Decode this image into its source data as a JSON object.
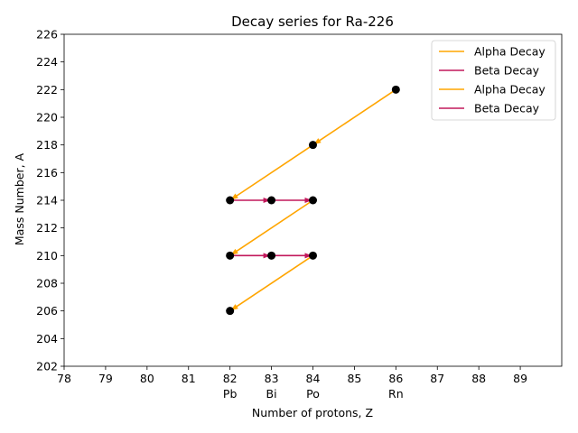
{
  "chart_data": {
    "type": "scatter",
    "title": "Decay series for Ra-226",
    "xlabel": "Number of protons, Z",
    "ylabel": "Mass Number, A",
    "xlim": [
      78,
      90
    ],
    "ylim": [
      202,
      226
    ],
    "x_ticks": [
      78,
      79,
      80,
      81,
      82,
      83,
      84,
      85,
      86,
      87,
      88,
      89
    ],
    "y_ticks": [
      202,
      204,
      206,
      208,
      210,
      212,
      214,
      216,
      218,
      220,
      222,
      224,
      226
    ],
    "element_labels": [
      {
        "z": 82,
        "symbol": "Pb"
      },
      {
        "z": 83,
        "symbol": "Bi"
      },
      {
        "z": 84,
        "symbol": "Po"
      },
      {
        "z": 86,
        "symbol": "Rn"
      }
    ],
    "grid": false,
    "legend_position": "top-right",
    "colors": {
      "alpha": "#FFA500",
      "beta": "#C2185B",
      "point": "#000000"
    },
    "points": [
      {
        "z": 86,
        "a": 222
      },
      {
        "z": 84,
        "a": 218
      },
      {
        "z": 82,
        "a": 214
      },
      {
        "z": 83,
        "a": 214
      },
      {
        "z": 84,
        "a": 214
      },
      {
        "z": 82,
        "a": 210
      },
      {
        "z": 83,
        "a": 210
      },
      {
        "z": 84,
        "a": 210
      },
      {
        "z": 82,
        "a": 206
      }
    ],
    "series": [
      {
        "name": "Alpha Decay",
        "kind": "alpha",
        "from": [
          86,
          222
        ],
        "to": [
          84,
          218
        ]
      },
      {
        "name": "Beta Decay",
        "kind": "beta",
        "from": [
          82,
          214
        ],
        "to": [
          83,
          214
        ]
      },
      {
        "name": "Alpha Decay",
        "kind": "alpha",
        "from": [
          84,
          218
        ],
        "to": [
          82,
          214
        ]
      },
      {
        "name": "Beta Decay",
        "kind": "beta",
        "from": [
          83,
          214
        ],
        "to": [
          84,
          214
        ]
      }
    ],
    "extra_decays": [
      {
        "kind": "alpha",
        "from": [
          84,
          214
        ],
        "to": [
          82,
          210
        ]
      },
      {
        "kind": "beta",
        "from": [
          82,
          210
        ],
        "to": [
          83,
          210
        ]
      },
      {
        "kind": "beta",
        "from": [
          83,
          210
        ],
        "to": [
          84,
          210
        ]
      },
      {
        "kind": "alpha",
        "from": [
          84,
          210
        ],
        "to": [
          82,
          206
        ]
      }
    ]
  }
}
